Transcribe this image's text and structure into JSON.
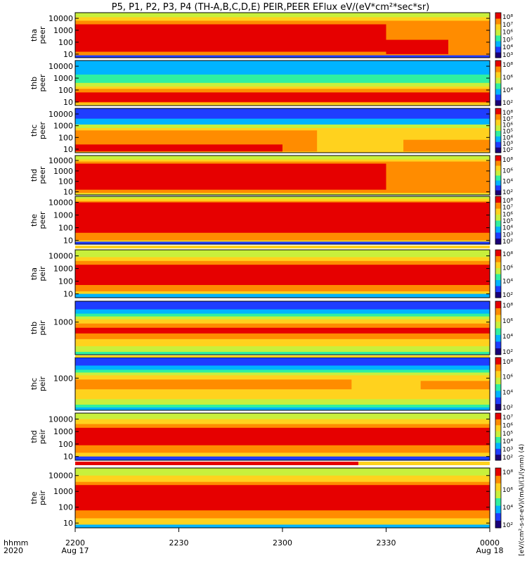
{
  "title": "P5, P1, P2, P3, P4 (TH-A,B,C,D,E) PEIR,PEER EFlux eV/(eV*cm²*sec*sr)",
  "time_axis": {
    "row_label_top": "hhmm",
    "row_label_bottom": "2020",
    "ticks": [
      {
        "label": "2200",
        "sub": "Aug 17",
        "t": 0
      },
      {
        "label": "2230",
        "sub": "",
        "t": 30
      },
      {
        "label": "2300",
        "sub": "",
        "t": 60
      },
      {
        "label": "2330",
        "sub": "",
        "t": 90
      },
      {
        "label": "0000",
        "sub": "Aug 18",
        "t": 120
      }
    ]
  },
  "colorbar_label": "[eV/(cm²-s-sr-eV)/(mA)/(1/(ynm) (4)",
  "colors": {
    "scale": [
      "#1a0078",
      "#1f3dff",
      "#00b4ff",
      "#30f0a0",
      "#c8f03c",
      "#ffd21e",
      "#ff8c00",
      "#e60000"
    ],
    "background": "#ffffff",
    "axis": "#000000"
  },
  "chart_data": {
    "type": "heatmap",
    "x_unit": "minutes after 2020-08-17 22:00 UT",
    "x_range": [
      0,
      120
    ],
    "y_scale": "log",
    "panels": [
      {
        "probe": "tha",
        "species": "peer",
        "label_top": "tha",
        "label_bottom": "peer",
        "y_ticks": [
          "10",
          "100",
          "1000",
          "10000"
        ],
        "y_range": [
          5,
          30000
        ],
        "color_ticks": [
          "10⁸",
          "10⁷",
          "10⁶",
          "10⁵",
          "10⁴",
          "10³"
        ]
      },
      {
        "probe": "thb",
        "species": "peer",
        "label_top": "thb",
        "label_bottom": "peer",
        "y_ticks": [
          "10",
          "100",
          "1000",
          "10000"
        ],
        "y_range": [
          5,
          30000
        ],
        "color_ticks": [
          "10⁸",
          "10⁶",
          "10⁴",
          "10²"
        ]
      },
      {
        "probe": "thc",
        "species": "peer",
        "label_top": "thc",
        "label_bottom": "peer",
        "y_ticks": [
          "10",
          "100",
          "1000",
          "10000"
        ],
        "y_range": [
          5,
          30000
        ],
        "color_ticks": [
          "10⁸",
          "10⁷",
          "10⁶",
          "10⁵",
          "10⁴",
          "10³",
          "10²"
        ]
      },
      {
        "probe": "thd",
        "species": "peer",
        "label_top": "thd",
        "label_bottom": "peer",
        "y_ticks": [
          "10",
          "100",
          "1000",
          "10000"
        ],
        "y_range": [
          5,
          30000
        ],
        "color_ticks": [
          "10⁸",
          "10⁶",
          "10⁴",
          "10²"
        ]
      },
      {
        "probe": "the",
        "species": "peer",
        "label_top": "the",
        "label_bottom": "peer",
        "y_ticks": [
          "10",
          "100",
          "1000",
          "10000"
        ],
        "y_range": [
          5,
          30000
        ],
        "color_ticks": [
          "10⁸",
          "10⁷",
          "10⁶",
          "10⁵",
          "10⁴",
          "10³",
          "10²"
        ]
      },
      {
        "probe": "tha",
        "species": "peir",
        "label_top": "tha",
        "label_bottom": "peir",
        "y_ticks": [
          "10",
          "100",
          "1000",
          "10000"
        ],
        "y_range": [
          5,
          30000
        ],
        "color_ticks": [
          "10⁸",
          "10⁶",
          "10⁴",
          "10²"
        ]
      },
      {
        "probe": "thb",
        "species": "peir",
        "label_top": "thb",
        "label_bottom": "peir",
        "y_ticks": [
          "1000"
        ],
        "y_range": [
          5,
          30000
        ],
        "color_ticks": [
          "10⁸",
          "10⁶",
          "10⁴",
          "10²"
        ]
      },
      {
        "probe": "thc",
        "species": "peir",
        "label_top": "thc",
        "label_bottom": "peir",
        "y_ticks": [
          "1000"
        ],
        "y_range": [
          5,
          30000
        ],
        "color_ticks": [
          "10⁸",
          "10⁶",
          "10⁴",
          "10²"
        ]
      },
      {
        "probe": "thd",
        "species": "peir",
        "label_top": "thd",
        "label_bottom": "peir",
        "y_ticks": [
          "10",
          "100",
          "1000",
          "10000"
        ],
        "y_range": [
          5,
          30000
        ],
        "color_ticks": [
          "10⁷",
          "10⁶",
          "10⁵",
          "10⁴",
          "10³",
          "10²"
        ]
      },
      {
        "probe": "the",
        "species": "peir",
        "label_top": "the",
        "label_bottom": "peir",
        "y_ticks": [
          "10",
          "100",
          "1000",
          "10000"
        ],
        "y_range": [
          5,
          30000
        ],
        "color_ticks": [
          "10⁸",
          "10⁶",
          "10⁴",
          "10²"
        ]
      }
    ]
  }
}
